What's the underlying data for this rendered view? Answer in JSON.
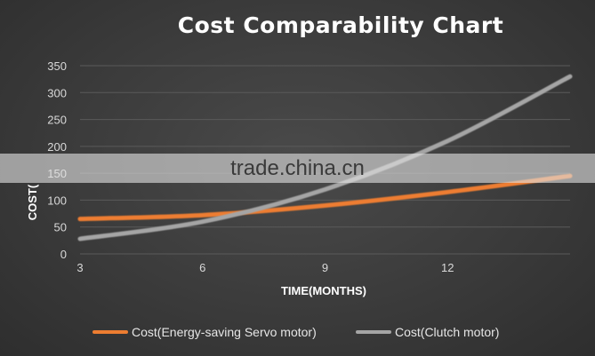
{
  "chart_data": {
    "type": "line",
    "title": "Cost Comparability Chart",
    "xlabel": "TIME(MONTHS)",
    "ylabel": "COST(",
    "x_ticks": [
      3,
      6,
      9,
      12
    ],
    "xlim": [
      3,
      15
    ],
    "y_ticks": [
      0,
      50,
      100,
      150,
      200,
      250,
      300,
      350
    ],
    "ylim": [
      0,
      350
    ],
    "grid": true,
    "legend_position": "bottom",
    "series": [
      {
        "name": "Cost(Energy-saving Servo motor)",
        "color": "#ed7d31",
        "x": [
          3,
          6,
          9,
          12,
          15
        ],
        "y": [
          65,
          72,
          90,
          115,
          145
        ]
      },
      {
        "name": "Cost(Clutch motor)",
        "color": "#a5a5a5",
        "x": [
          3,
          6,
          9,
          12,
          15
        ],
        "y": [
          28,
          60,
          120,
          210,
          330
        ]
      }
    ]
  },
  "watermark": "trade.china.cn",
  "colors": {
    "background": "#3b3b3b",
    "gridline": "#5a5a5a",
    "axis_text": "#d9d9d9"
  }
}
